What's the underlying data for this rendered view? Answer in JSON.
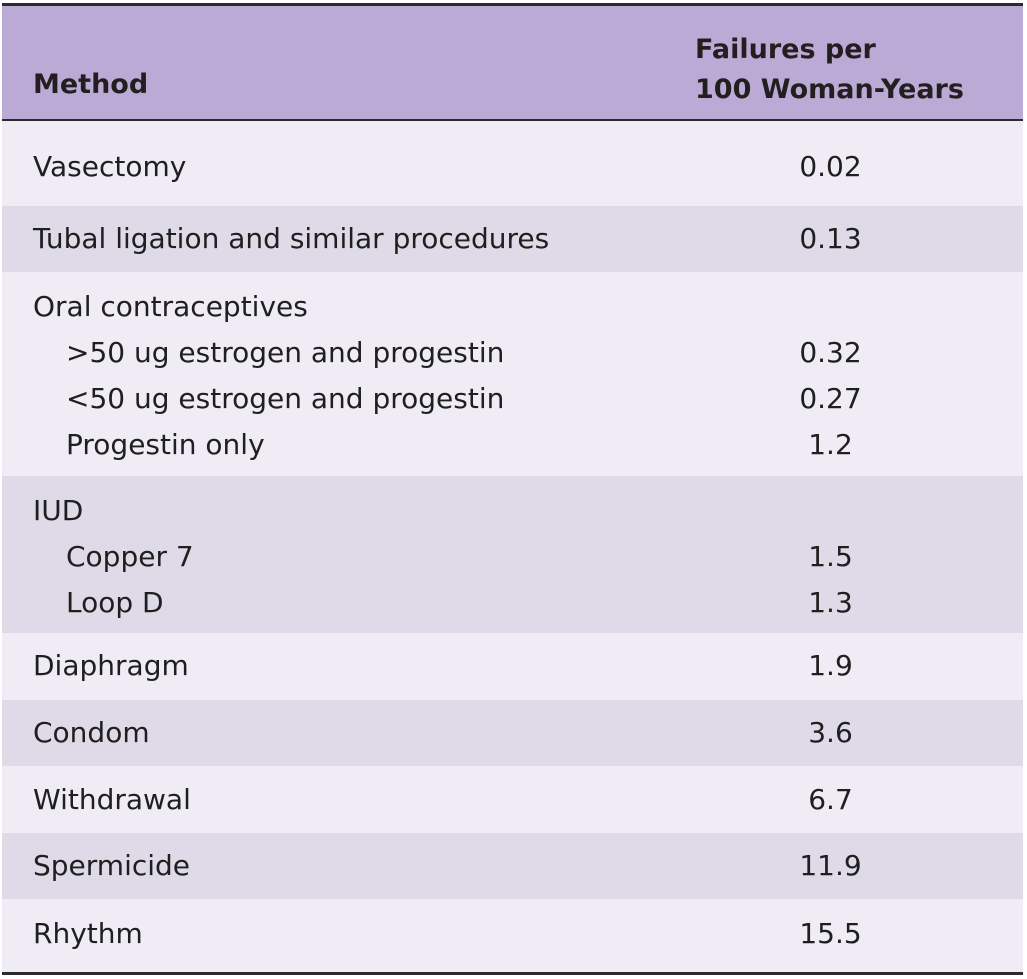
{
  "header": {
    "method": "Method",
    "failures_line1": "Failures per",
    "failures_line2": "100 Woman-Years"
  },
  "rows": [
    {
      "lines": [
        {
          "label": "Vasectomy",
          "value": "0.02"
        }
      ]
    },
    {
      "lines": [
        {
          "label": "Tubal ligation and similar procedures",
          "value": "0.13"
        }
      ]
    },
    {
      "lines": [
        {
          "label": "Oral contraceptives",
          "value": ""
        },
        {
          "label": ">50 ug estrogen and progestin",
          "value": "0.32"
        },
        {
          "label": "<50 ug estrogen and progestin",
          "value": "0.27"
        },
        {
          "label": "Progestin only",
          "value": "1.2"
        }
      ]
    },
    {
      "lines": [
        {
          "label": "IUD",
          "value": ""
        },
        {
          "label": "Copper 7",
          "value": "1.5"
        },
        {
          "label": "Loop D",
          "value": "1.3"
        }
      ]
    },
    {
      "lines": [
        {
          "label": "Diaphragm",
          "value": "1.9"
        }
      ]
    },
    {
      "lines": [
        {
          "label": "Condom",
          "value": "3.6"
        }
      ]
    },
    {
      "lines": [
        {
          "label": "Withdrawal",
          "value": "6.7"
        }
      ]
    },
    {
      "lines": [
        {
          "label": "Spermicide",
          "value": "11.9"
        }
      ]
    },
    {
      "lines": [
        {
          "label": "Rhythm",
          "value": "15.5"
        }
      ]
    }
  ],
  "colors": {
    "header_bg": "#bcaad6",
    "row_light": "#efecf6",
    "row_dark": "#dedae8",
    "rule": "#2b2b2b"
  }
}
